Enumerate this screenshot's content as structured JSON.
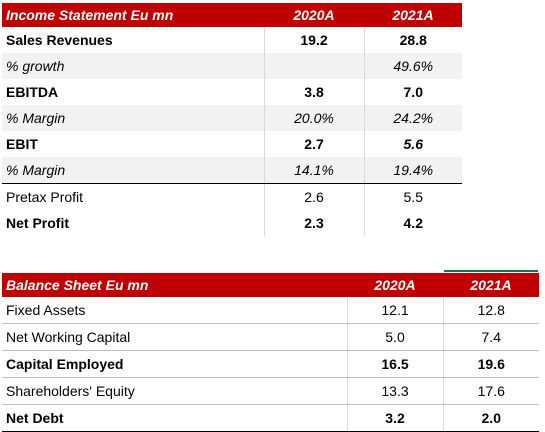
{
  "income": {
    "title": "Income Statement Eu mn",
    "col1": "2020A",
    "col2": "2021A",
    "rows": [
      {
        "label": "Sales Revenues",
        "v1": "19.2",
        "v2": "28.8"
      },
      {
        "label": "% growth",
        "v1": "",
        "v2": "49.6%"
      },
      {
        "label": "EBITDA",
        "v1": "3.8",
        "v2": "7.0"
      },
      {
        "label": "% Margin",
        "v1": "20.0%",
        "v2": "24.2%"
      },
      {
        "label": "EBIT",
        "v1": "2.7",
        "v2": "5.6"
      },
      {
        "label": "% Margin",
        "v1": "14.1%",
        "v2": "19.4%"
      },
      {
        "label": "Pretax Profit",
        "v1": "2.6",
        "v2": "5.5"
      },
      {
        "label": "Net Profit",
        "v1": "2.3",
        "v2": "4.2"
      }
    ]
  },
  "balance": {
    "title": "Balance Sheet Eu mn",
    "col1": "2020A",
    "col2": "2021A",
    "rows": [
      {
        "label": "Fixed Assets",
        "v1": "12.1",
        "v2": "12.8"
      },
      {
        "label": "Net Working Capital",
        "v1": "5.0",
        "v2": "7.4"
      },
      {
        "label": "Capital Employed",
        "v1": "16.5",
        "v2": "19.6"
      },
      {
        "label": "Shareholders' Equity",
        "v1": "13.3",
        "v2": "17.6"
      },
      {
        "label": "Net Debt",
        "v1": "3.2",
        "v2": "2.0"
      }
    ]
  },
  "colors": {
    "header_bg": "#c00000",
    "header_text": "#ffffff",
    "accent_line": "#1e7145"
  }
}
